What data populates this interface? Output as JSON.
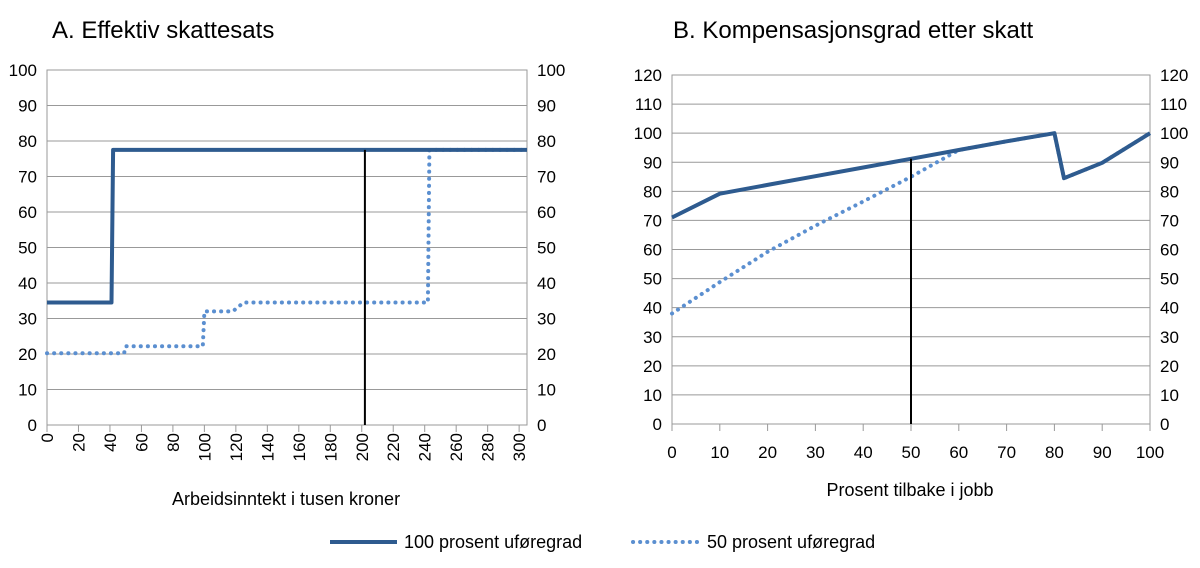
{
  "chart_data": [
    {
      "type": "line",
      "title": "A. Effektiv skattesats",
      "xlabel": "Arbeidsinntekt i tusen kroner",
      "ylabel": "",
      "xlim": [
        0,
        305
      ],
      "ylim": [
        0,
        100
      ],
      "xticks": [
        0,
        20,
        40,
        60,
        80,
        100,
        120,
        140,
        160,
        180,
        200,
        220,
        240,
        260,
        280,
        300
      ],
      "yticks": [
        0,
        10,
        20,
        30,
        40,
        50,
        60,
        70,
        80,
        90,
        100
      ],
      "secondary_y_axis": true,
      "grid": "horizontal",
      "vertical_marker_x": 202,
      "series": [
        {
          "name": "100 prosent uføregrad",
          "style": "solid",
          "color": "#2e5b8f",
          "points": [
            [
              0,
              34.5
            ],
            [
              41,
              34.5
            ],
            [
              42,
              77.5
            ],
            [
              305,
              77.5
            ]
          ]
        },
        {
          "name": "50 prosent uføregrad",
          "style": "dotted",
          "color": "#5b8fd0",
          "points": [
            [
              0,
              20.2
            ],
            [
              49,
              20.2
            ],
            [
              50,
              22.2
            ],
            [
              99,
              22.2
            ],
            [
              100,
              32
            ],
            [
              118,
              32
            ],
            [
              125,
              34.5
            ],
            [
              242,
              34.5
            ],
            [
              243,
              77.5
            ],
            [
              305,
              77.5
            ]
          ]
        }
      ]
    },
    {
      "type": "line",
      "title": "B. Kompensasjonsgrad etter skatt",
      "xlabel": "Prosent tilbake i jobb",
      "ylabel": "",
      "xlim": [
        0,
        100
      ],
      "ylim": [
        0,
        120
      ],
      "xticks": [
        0,
        10,
        20,
        30,
        40,
        50,
        60,
        70,
        80,
        90,
        100
      ],
      "yticks": [
        0,
        10,
        20,
        30,
        40,
        50,
        60,
        70,
        80,
        90,
        100,
        110,
        120
      ],
      "secondary_y_axis": true,
      "grid": "horizontal",
      "vertical_marker_x": 50,
      "series": [
        {
          "name": "100 prosent uføregrad",
          "style": "solid",
          "color": "#2e5b8f",
          "points": [
            [
              0,
              71
            ],
            [
              10,
              79.2
            ],
            [
              20,
              82.2
            ],
            [
              30,
              85.2
            ],
            [
              40,
              88.2
            ],
            [
              50,
              91.2
            ],
            [
              60,
              94.2
            ],
            [
              70,
              97.2
            ],
            [
              80,
              100
            ],
            [
              82,
              84.5
            ],
            [
              90,
              89.8
            ],
            [
              100,
              100
            ]
          ]
        },
        {
          "name": "50 prosent uføregrad",
          "style": "dotted",
          "color": "#5b8fd0",
          "points": [
            [
              0,
              38
            ],
            [
              10,
              48.8
            ],
            [
              20,
              59.2
            ],
            [
              30,
              68.2
            ],
            [
              40,
              76.5
            ],
            [
              50,
              85
            ],
            [
              60,
              94.2
            ],
            [
              70,
              97.2
            ],
            [
              80,
              100
            ],
            [
              82,
              84.5
            ],
            [
              90,
              89.8
            ],
            [
              100,
              100
            ]
          ]
        }
      ]
    }
  ],
  "legend": {
    "items": [
      {
        "label": "100 prosent uføregrad",
        "style": "solid"
      },
      {
        "label": "50 prosent uføregrad",
        "style": "dotted"
      }
    ]
  }
}
